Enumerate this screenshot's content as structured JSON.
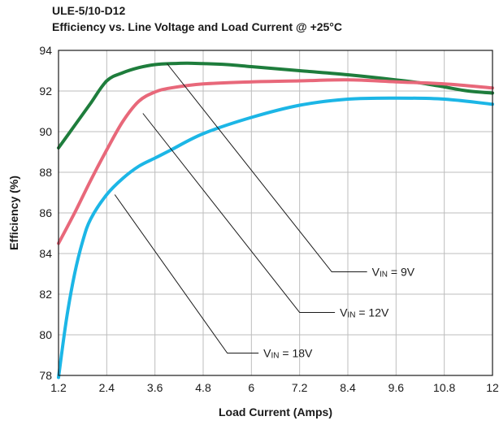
{
  "chart_data": {
    "type": "line",
    "title": "ULE-5/10-D12",
    "subtitle": "Efficiency vs. Line Voltage and Load Current @ +25°C",
    "xlabel": "Load Current (Amps)",
    "ylabel": "Efficiency (%)",
    "xlim": [
      1.2,
      12
    ],
    "ylim": [
      78,
      94
    ],
    "xticks": [
      "1.2",
      "2.4",
      "3.6",
      "4.8",
      "6",
      "7.2",
      "8.4",
      "9.6",
      "10.8",
      "12"
    ],
    "yticks": [
      "78",
      "80",
      "82",
      "84",
      "86",
      "88",
      "90",
      "92",
      "94"
    ],
    "grid": true,
    "series": [
      {
        "name": "VIN = 9V",
        "label_main": "V",
        "label_sub": "IN",
        "label_rest": " = 9V",
        "color": "#1e7d3c",
        "x": [
          1.2,
          1.6,
          2.0,
          2.4,
          2.8,
          3.2,
          3.6,
          4.0,
          4.4,
          4.8,
          5.4,
          6.0,
          7.2,
          8.4,
          9.6,
          10.2,
          10.8,
          11.4,
          12.0
        ],
        "y": [
          89.2,
          90.3,
          91.4,
          92.5,
          92.9,
          93.15,
          93.3,
          93.35,
          93.37,
          93.35,
          93.3,
          93.2,
          93.0,
          92.8,
          92.55,
          92.4,
          92.2,
          92.0,
          91.9
        ]
      },
      {
        "name": "VIN = 12V",
        "label_main": "V",
        "label_sub": "IN",
        "label_rest": " = 12V",
        "color": "#e8687a",
        "x": [
          1.2,
          1.6,
          2.0,
          2.4,
          2.8,
          3.2,
          3.6,
          4.0,
          4.8,
          6.0,
          7.2,
          8.4,
          9.6,
          10.8,
          12.0
        ],
        "y": [
          84.5,
          86.0,
          87.6,
          89.1,
          90.5,
          91.5,
          91.95,
          92.15,
          92.35,
          92.45,
          92.5,
          92.55,
          92.45,
          92.35,
          92.15
        ]
      },
      {
        "name": "VIN = 18V",
        "label_main": "V",
        "label_sub": "IN",
        "label_rest": " = 18V",
        "color": "#1cb6e6",
        "x": [
          1.2,
          1.4,
          1.6,
          1.8,
          2.0,
          2.4,
          2.8,
          3.2,
          3.6,
          4.0,
          4.8,
          6.0,
          7.2,
          8.4,
          9.6,
          10.8,
          12.0
        ],
        "y": [
          77.9,
          80.8,
          83.0,
          84.6,
          85.7,
          86.9,
          87.7,
          88.3,
          88.7,
          89.1,
          89.9,
          90.7,
          91.3,
          91.6,
          91.65,
          91.6,
          91.35
        ]
      }
    ],
    "annotations": [
      {
        "series": 0,
        "from": [
          3.9,
          93.35
        ],
        "to": [
          8.0,
          83.1
        ],
        "label_at": [
          9.0,
          83.1
        ]
      },
      {
        "series": 1,
        "from": [
          3.3,
          90.9
        ],
        "to": [
          7.2,
          81.1
        ],
        "label_at": [
          8.2,
          81.1
        ]
      },
      {
        "series": 2,
        "from": [
          2.6,
          86.9
        ],
        "to": [
          5.4,
          79.1
        ],
        "label_at": [
          6.3,
          79.1
        ]
      }
    ]
  }
}
